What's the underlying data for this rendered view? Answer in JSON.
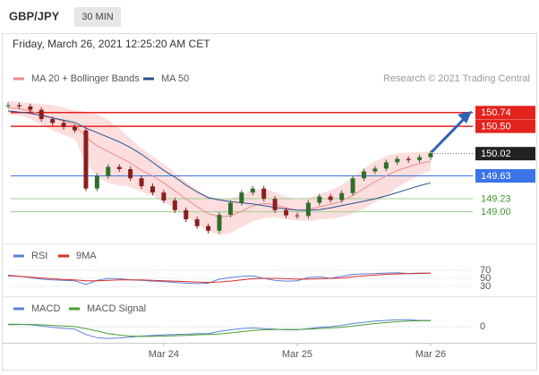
{
  "header": {
    "symbol": "GBP/JPY",
    "timeframe": "30 MIN",
    "timestamp": "Friday, March 26, 2021 12:25:20 AM CET",
    "credit": "Research © 2021 Trading Central"
  },
  "chart_data": [
    {
      "type": "candlestick",
      "categories": [
        null,
        null,
        null,
        null,
        null,
        null,
        null,
        null,
        null,
        null,
        null,
        null,
        null,
        null,
        "Mar 24",
        null,
        null,
        null,
        null,
        null,
        null,
        null,
        null,
        null,
        null,
        null,
        "Mar 25",
        null,
        null,
        null,
        null,
        null,
        null,
        null,
        null,
        null,
        null,
        null,
        "Mar 26"
      ],
      "close": [
        150.86,
        150.84,
        150.78,
        150.62,
        150.55,
        150.48,
        150.42,
        149.4,
        149.62,
        149.78,
        149.74,
        149.58,
        149.44,
        149.33,
        149.19,
        149.02,
        148.86,
        148.74,
        148.66,
        148.94,
        149.15,
        149.33,
        149.4,
        149.22,
        149.02,
        148.93,
        148.92,
        149.15,
        149.26,
        149.2,
        149.32,
        149.58,
        149.7,
        149.75,
        149.86,
        149.92,
        149.9,
        149.95,
        150.02
      ],
      "up_color": "#2f6e2a",
      "down_color": "#8a1f1f",
      "series": [
        {
          "name": "MA 20 + Bollinger Bands",
          "color": "#f08a8a",
          "band_color": "#fbd6d6",
          "values": [
            150.82,
            150.8,
            150.76,
            150.7,
            150.64,
            150.58,
            150.52,
            150.3,
            150.15,
            150.05,
            149.95,
            149.85,
            149.72,
            149.62,
            149.5,
            149.36,
            149.22,
            149.08,
            148.96,
            148.9,
            148.92,
            149.0,
            149.1,
            149.14,
            149.12,
            149.06,
            149.02,
            149.03,
            149.08,
            149.12,
            149.18,
            149.28,
            149.4,
            149.52,
            149.62,
            149.72,
            149.78,
            149.84,
            149.88
          ],
          "upper": [
            150.94,
            150.92,
            150.9,
            150.88,
            150.86,
            150.82,
            150.77,
            150.75,
            150.7,
            150.6,
            150.45,
            150.27,
            150.1,
            149.97,
            149.83,
            149.68,
            149.52,
            149.38,
            149.26,
            149.22,
            149.22,
            149.28,
            149.38,
            149.4,
            149.34,
            149.26,
            149.2,
            149.23,
            149.3,
            149.37,
            149.46,
            149.6,
            149.75,
            149.88,
            149.97,
            150.02,
            150.03,
            150.04,
            150.05
          ],
          "lower": [
            150.7,
            150.68,
            150.62,
            150.52,
            150.42,
            150.34,
            150.27,
            149.85,
            149.6,
            149.5,
            149.45,
            149.43,
            149.34,
            149.27,
            149.17,
            149.04,
            148.92,
            148.78,
            148.66,
            148.58,
            148.62,
            148.72,
            148.82,
            148.88,
            148.9,
            148.86,
            148.84,
            148.83,
            148.86,
            148.87,
            148.9,
            148.96,
            149.05,
            149.16,
            149.27,
            149.42,
            149.53,
            149.64,
            149.71
          ]
        },
        {
          "name": "MA 50",
          "color": "#2a4f8f",
          "values": [
            150.76,
            150.74,
            150.72,
            150.68,
            150.64,
            150.6,
            150.56,
            150.46,
            150.38,
            150.3,
            150.22,
            150.12,
            150.0,
            149.86,
            149.72,
            149.6,
            149.46,
            149.34,
            149.24,
            149.2,
            149.17,
            149.15,
            149.13,
            149.1,
            149.07,
            149.04,
            149.02,
            149.02,
            149.03,
            149.06,
            149.1,
            149.14,
            149.18,
            149.22,
            149.27,
            149.33,
            149.39,
            149.45,
            149.5
          ]
        }
      ],
      "levels": [
        {
          "value": 150.74,
          "color": "#e3231d",
          "boxed": true
        },
        {
          "value": 150.5,
          "label": "150.50",
          "color": "#e3231d",
          "boxed": true
        },
        {
          "value": 150.02,
          "color": "#222222",
          "boxed": true,
          "dotted": true
        },
        {
          "value": 149.63,
          "color": "#3b74e6",
          "boxed": true
        },
        {
          "value": 149.23,
          "color": "#3d9a2e",
          "boxed": false
        },
        {
          "value": 149,
          "label": "149.00",
          "color": "#3d9a2e",
          "boxed": false
        }
      ],
      "ylim": [
        148.5,
        150.98
      ]
    },
    {
      "type": "line",
      "series": [
        {
          "name": "RSI",
          "color": "#5b7fd6",
          "values": [
            58,
            55,
            52,
            48,
            46,
            45,
            44,
            35,
            45,
            50,
            49,
            46,
            45,
            43,
            42,
            40,
            38,
            37,
            38,
            48,
            52,
            55,
            56,
            50,
            45,
            43,
            44,
            52,
            54,
            50,
            55,
            60,
            61,
            62,
            63,
            64,
            62,
            63,
            63
          ]
        },
        {
          "name": "9MA",
          "color": "#e02a2a",
          "values": [
            56,
            55,
            53,
            51,
            49,
            47,
            46,
            44,
            44,
            45,
            46,
            46,
            46,
            45,
            44,
            43,
            42,
            41,
            40,
            41,
            43,
            46,
            49,
            50,
            50,
            49,
            48,
            48,
            49,
            50,
            51,
            54,
            56,
            58,
            60,
            61,
            62,
            62,
            63
          ]
        }
      ],
      "ylim": [
        20,
        80
      ],
      "yticks": [
        30,
        50,
        70
      ]
    },
    {
      "type": "line",
      "series": [
        {
          "name": "MACD",
          "color": "#5b7fd6",
          "values": [
            0.08,
            0.08,
            0.06,
            0.02,
            -0.02,
            -0.05,
            -0.08,
            -0.25,
            -0.35,
            -0.38,
            -0.36,
            -0.33,
            -0.3,
            -0.28,
            -0.26,
            -0.25,
            -0.24,
            -0.22,
            -0.22,
            -0.15,
            -0.1,
            -0.06,
            -0.04,
            -0.06,
            -0.08,
            -0.1,
            -0.1,
            -0.06,
            -0.02,
            0,
            0.04,
            0.1,
            0.14,
            0.18,
            0.2,
            0.22,
            0.22,
            0.2,
            0.2
          ]
        },
        {
          "name": "MACD Signal",
          "color": "#4aa02c",
          "values": [
            0.06,
            0.07,
            0.07,
            0.06,
            0.04,
            0.02,
            0,
            -0.06,
            -0.14,
            -0.22,
            -0.27,
            -0.3,
            -0.31,
            -0.31,
            -0.3,
            -0.29,
            -0.28,
            -0.26,
            -0.25,
            -0.23,
            -0.2,
            -0.16,
            -0.12,
            -0.1,
            -0.09,
            -0.09,
            -0.09,
            -0.08,
            -0.06,
            -0.04,
            -0.02,
            0.02,
            0.06,
            0.1,
            0.13,
            0.16,
            0.18,
            0.19,
            0.19
          ]
        }
      ],
      "ylim": [
        -0.5,
        0.5
      ],
      "yticks": [
        0
      ]
    }
  ]
}
